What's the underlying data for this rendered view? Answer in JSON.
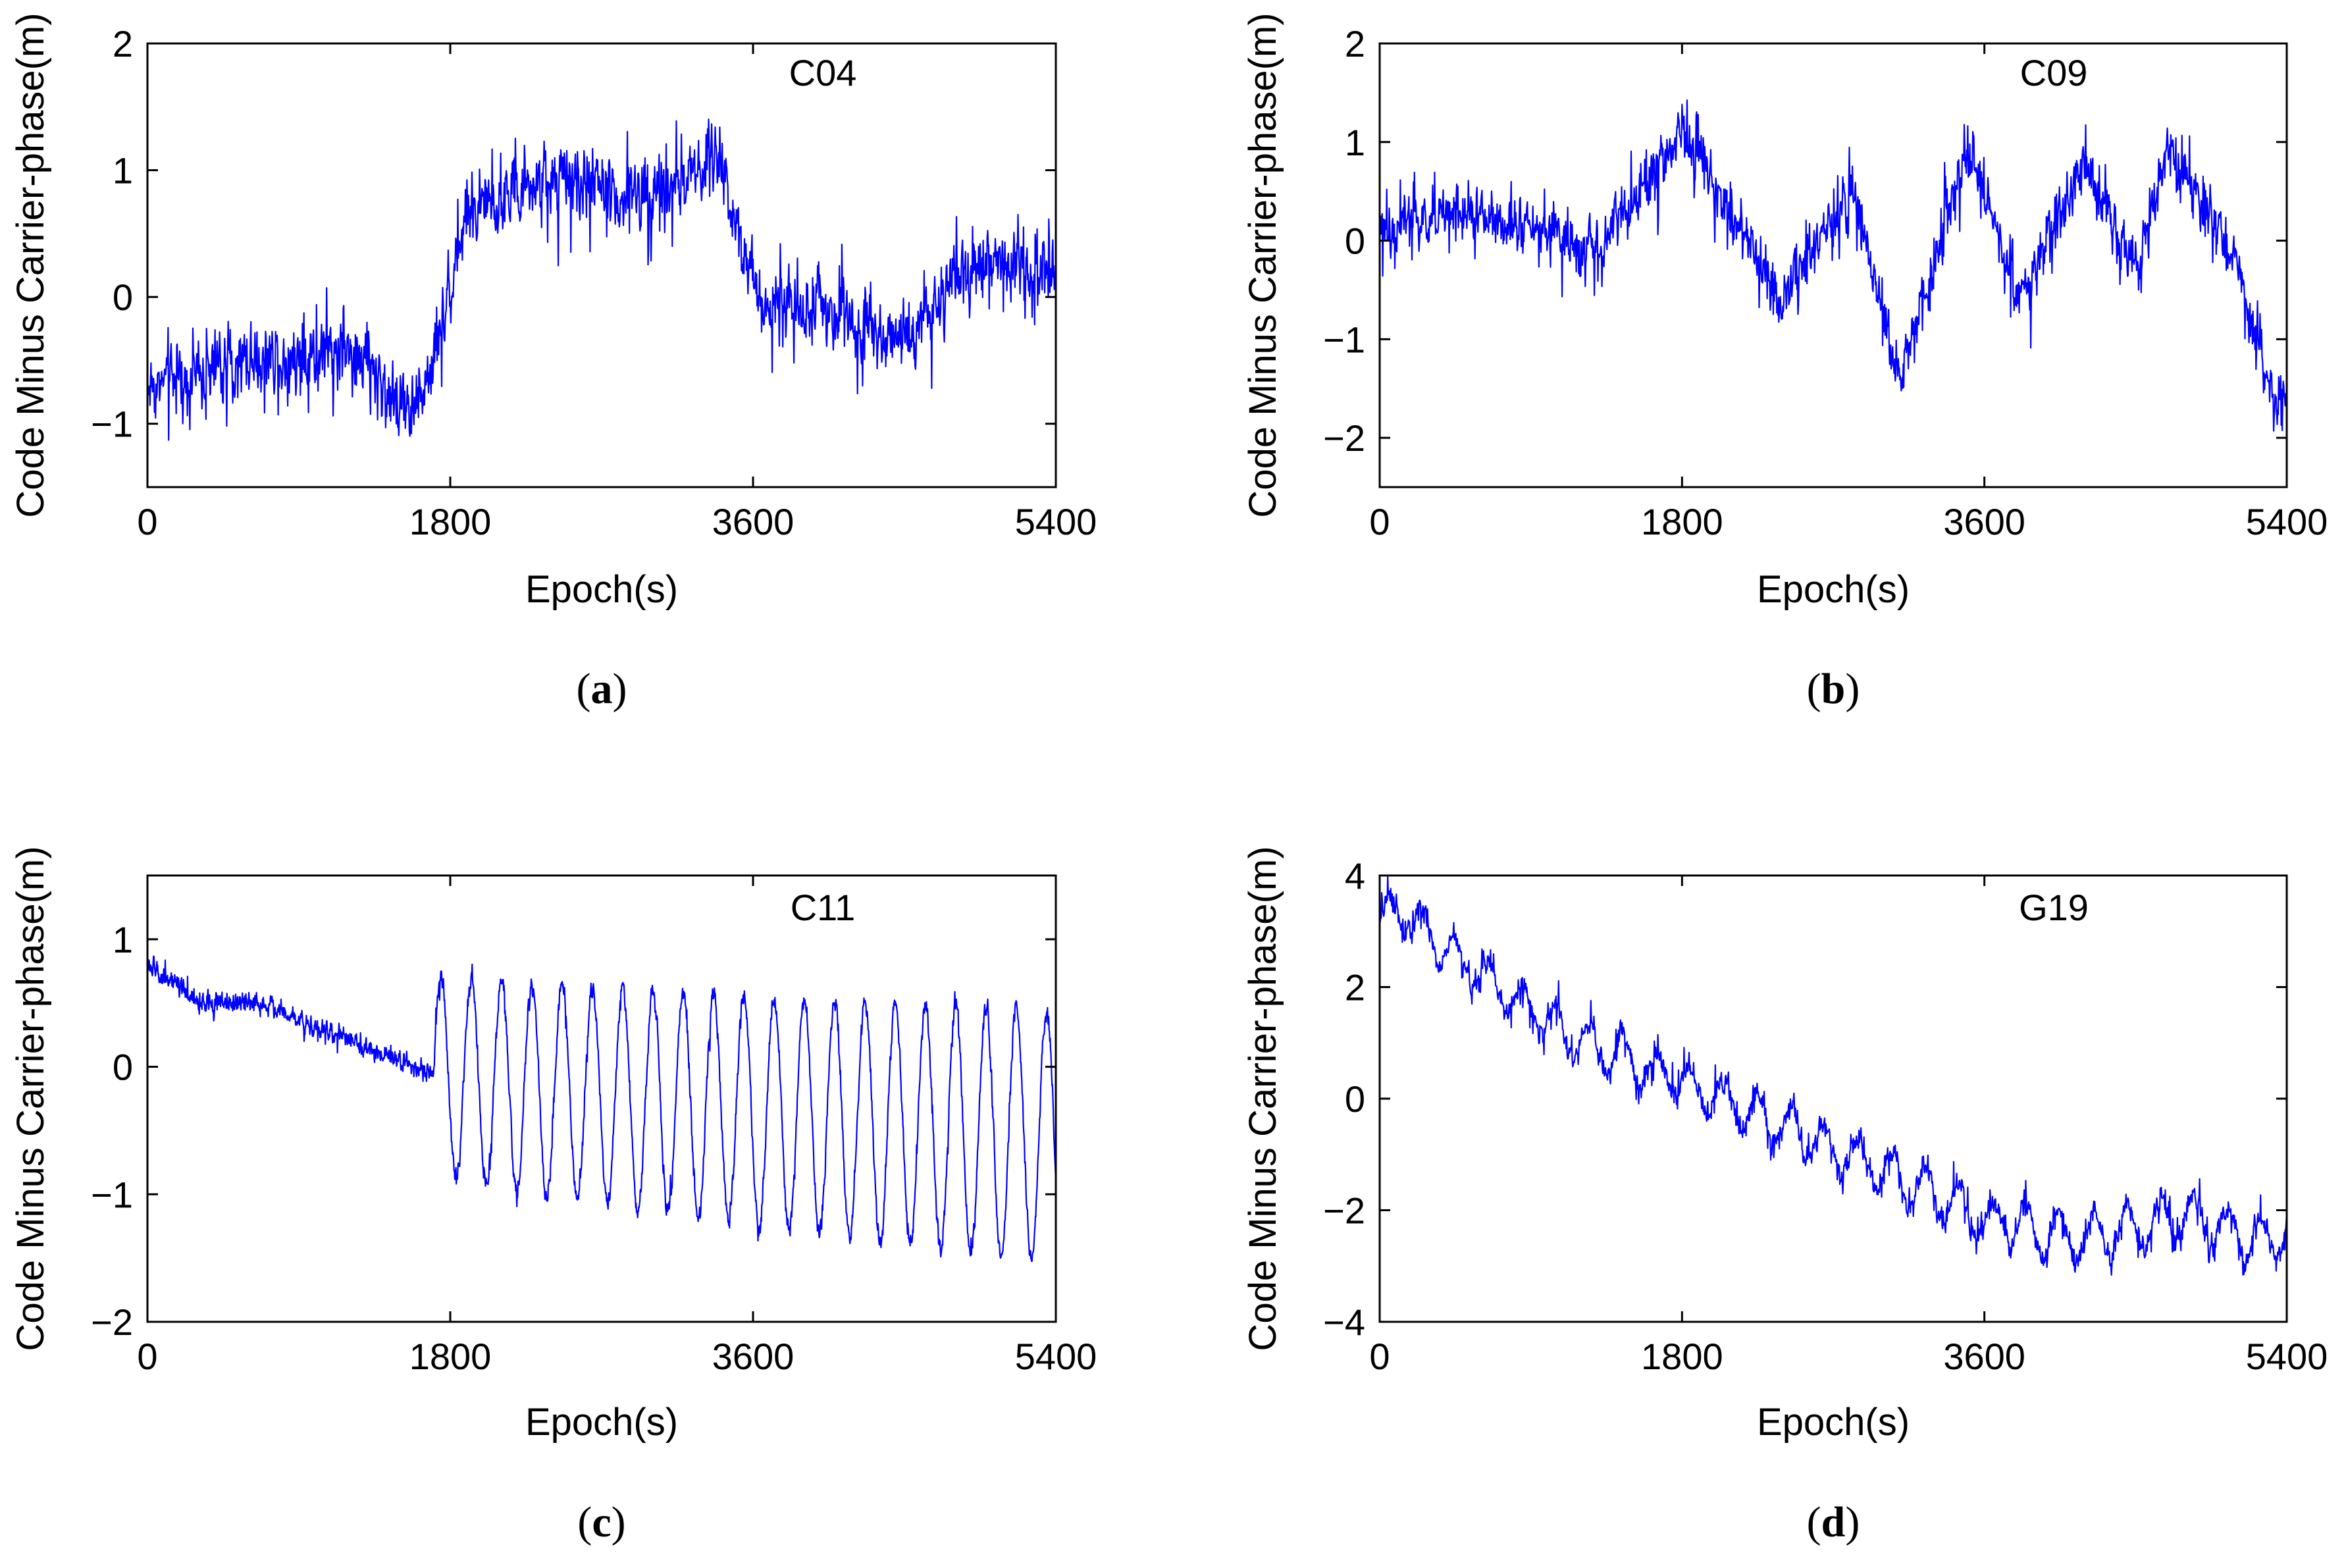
{
  "figure": {
    "line_color": "#0000ff",
    "panels": [
      "a",
      "b",
      "c",
      "d"
    ]
  },
  "chart_data": [
    {
      "type": "line",
      "id": "a",
      "caption_letter": "a",
      "satellite": "C04",
      "xlabel": "Epoch(s)",
      "ylabel": "Code Minus Carrier-phase(m)",
      "xlim": [
        0,
        5400
      ],
      "ylim": [
        -1.5,
        2
      ],
      "xticks": [
        0,
        1800,
        3600,
        5400
      ],
      "yticks": [
        -1,
        0,
        1,
        2
      ],
      "ytick_labels": [
        "−1",
        "0",
        "1",
        "2"
      ],
      "noise": 0.28,
      "spikes": 0.12,
      "samples": 1800,
      "trend": {
        "x": [
          0,
          600,
          1200,
          1400,
          1600,
          1750,
          1900,
          2400,
          3000,
          3400,
          3500,
          3650,
          4000,
          4500,
          5000,
          5400
        ],
        "y": [
          -0.7,
          -0.5,
          -0.4,
          -0.7,
          -0.9,
          -0.2,
          0.7,
          0.9,
          0.8,
          1.1,
          0.6,
          0.0,
          -0.1,
          -0.3,
          0.3,
          0.2
        ]
      }
    },
    {
      "type": "line",
      "id": "b",
      "caption_letter": "b",
      "satellite": "C09",
      "xlabel": "Epoch(s)",
      "ylabel": "Code Minus Carrier-phase(m)",
      "xlim": [
        0,
        5400
      ],
      "ylim": [
        -2.5,
        2
      ],
      "xticks": [
        0,
        1800,
        3600,
        5400
      ],
      "yticks": [
        -2,
        -1,
        0,
        1,
        2
      ],
      "ytick_labels": [
        "−2",
        "−1",
        "0",
        "1",
        "2"
      ],
      "noise": 0.25,
      "spikes": 0.2,
      "samples": 1800,
      "trend": {
        "x": [
          0,
          500,
          1300,
          1800,
          2400,
          2800,
          3100,
          3500,
          3800,
          4200,
          4500,
          4700,
          5100,
          5300,
          5400
        ],
        "y": [
          0.1,
          0.3,
          -0.1,
          1.1,
          -0.6,
          0.5,
          -1.4,
          1.0,
          -0.6,
          0.8,
          -0.3,
          1.0,
          -0.2,
          -1.6,
          -1.5
        ]
      }
    },
    {
      "type": "line",
      "id": "c",
      "caption_letter": "c",
      "satellite": "C11",
      "xlabel": "Epoch(s)",
      "ylabel": "Code Minus Carrier-phase(m)",
      "xlim": [
        0,
        5400
      ],
      "ylim": [
        -2,
        1.5
      ],
      "xticks": [
        0,
        1800,
        3600,
        5400
      ],
      "yticks": [
        -2,
        -1,
        0,
        1
      ],
      "ytick_labels": [
        "−2",
        "−1",
        "0",
        "1"
      ],
      "noise": 0.08,
      "spikes": 0.05,
      "samples": 2400,
      "trend": {
        "x": [
          0,
          300,
          700,
          1100,
          1600,
          1750,
          3600,
          5400
        ],
        "y": [
          0.8,
          0.5,
          0.5,
          0.25,
          0.0,
          -0.1,
          -0.35,
          -0.55
        ]
      },
      "oscillation": {
        "start": 1700,
        "period": 180,
        "amplitude_start": 0.8,
        "amplitude_end": 1.0
      }
    },
    {
      "type": "line",
      "id": "d",
      "caption_letter": "d",
      "satellite": "G19",
      "xlabel": "Epoch(s)",
      "ylabel": "Code Minus Carrier-phase(m)",
      "xlim": [
        0,
        5400
      ],
      "ylim": [
        -4,
        4
      ],
      "xticks": [
        0,
        1800,
        3600,
        5400
      ],
      "yticks": [
        -4,
        -2,
        0,
        2,
        4
      ],
      "ytick_labels": [
        "−4",
        "−2",
        "0",
        "2",
        "4"
      ],
      "noise": 0.22,
      "spikes": 0.15,
      "samples": 1800,
      "trend": {
        "x": [
          0,
          100,
          600,
          1200,
          1800,
          2400,
          3000,
          3600,
          4200,
          4800,
          5300,
          5400
        ],
        "y": [
          3.1,
          3.4,
          2.2,
          1.0,
          0.3,
          -0.5,
          -1.3,
          -2.2,
          -2.5,
          -2.1,
          -2.6,
          -2.2
        ]
      },
      "oscillation": {
        "start": 0,
        "period": 200,
        "amplitude_start": 0.35,
        "amplitude_end": 0.45
      }
    }
  ]
}
